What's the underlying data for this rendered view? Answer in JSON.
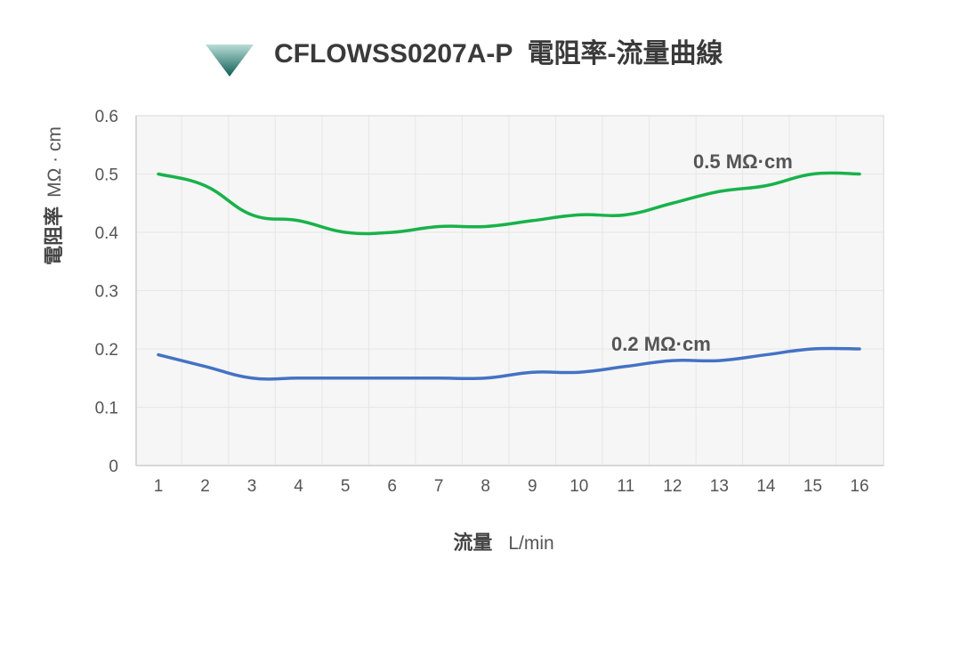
{
  "chart_data": {
    "type": "line",
    "title": "CFLOWSS0207A-P  電阻率-流量曲線",
    "xlabel": "流量",
    "xlabel_unit": "L/min",
    "ylabel": "電阻率",
    "ylabel_unit": "MΩ · cm",
    "x": [
      1,
      2,
      3,
      4,
      5,
      6,
      7,
      8,
      9,
      10,
      11,
      12,
      13,
      14,
      15,
      16
    ],
    "x_tick_labels": [
      "1",
      "2",
      "3",
      "4",
      "5",
      "6",
      "7",
      "8",
      "9",
      "10",
      "11",
      "12",
      "13",
      "14",
      "15",
      "16"
    ],
    "y_tick_labels": [
      "0",
      "0.1",
      "0.2",
      "0.3",
      "0.4",
      "0.5",
      "0.6"
    ],
    "ylim": [
      0,
      0.6
    ],
    "grid": true,
    "series": [
      {
        "name": "0.5 MΩ·cm",
        "color": "#18b24a",
        "values": [
          0.5,
          0.48,
          0.43,
          0.42,
          0.4,
          0.4,
          0.41,
          0.41,
          0.42,
          0.43,
          0.43,
          0.45,
          0.47,
          0.48,
          0.5,
          0.5
        ]
      },
      {
        "name": "0.2 MΩ·cm",
        "color": "#4472c4",
        "values": [
          0.19,
          0.17,
          0.15,
          0.15,
          0.15,
          0.15,
          0.15,
          0.15,
          0.16,
          0.16,
          0.17,
          0.18,
          0.18,
          0.19,
          0.2,
          0.2
        ]
      }
    ],
    "title_marker_colors": [
      "#b9dcd8",
      "#0f5e55"
    ]
  }
}
